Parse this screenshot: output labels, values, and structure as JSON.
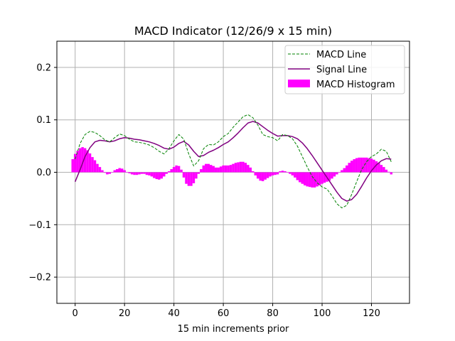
{
  "chart_data": {
    "type": "line",
    "title": "MACD Indicator (12/26/9 x 15 min)",
    "xlabel": "15 min increments prior",
    "ylabel": "",
    "xlim": [
      -7.4,
      135.4
    ],
    "ylim": [
      -0.25,
      0.25
    ],
    "x_ticks": [
      0,
      20,
      40,
      60,
      80,
      100,
      120
    ],
    "x_tick_labels": [
      "0",
      "20",
      "40",
      "60",
      "80",
      "100",
      "120"
    ],
    "y_ticks": [
      -0.2,
      -0.1,
      0.0,
      0.1,
      0.2
    ],
    "y_tick_labels": [
      "−0.2",
      "−0.1",
      "0.0",
      "0.1",
      "0.2"
    ],
    "grid": true,
    "legend_position": "top-right",
    "colors": {
      "macd": "#008000",
      "signal": "#800080",
      "histogram": "#ff00ff"
    },
    "series": [
      {
        "name": "MACD Line",
        "style": "dashed",
        "points": [
          [
            0,
            0.025
          ],
          [
            2,
            0.055
          ],
          [
            4,
            0.072
          ],
          [
            6,
            0.078
          ],
          [
            8,
            0.076
          ],
          [
            10,
            0.07
          ],
          [
            12,
            0.062
          ],
          [
            14,
            0.058
          ],
          [
            16,
            0.066
          ],
          [
            18,
            0.073
          ],
          [
            20,
            0.07
          ],
          [
            22,
            0.063
          ],
          [
            24,
            0.058
          ],
          [
            26,
            0.057
          ],
          [
            28,
            0.055
          ],
          [
            30,
            0.052
          ],
          [
            32,
            0.047
          ],
          [
            34,
            0.04
          ],
          [
            36,
            0.035
          ],
          [
            38,
            0.045
          ],
          [
            40,
            0.06
          ],
          [
            42,
            0.072
          ],
          [
            44,
            0.063
          ],
          [
            46,
            0.035
          ],
          [
            48,
            0.012
          ],
          [
            50,
            0.022
          ],
          [
            52,
            0.045
          ],
          [
            54,
            0.053
          ],
          [
            56,
            0.052
          ],
          [
            58,
            0.058
          ],
          [
            60,
            0.068
          ],
          [
            62,
            0.074
          ],
          [
            64,
            0.086
          ],
          [
            66,
            0.096
          ],
          [
            68,
            0.106
          ],
          [
            70,
            0.11
          ],
          [
            72,
            0.104
          ],
          [
            74,
            0.09
          ],
          [
            76,
            0.072
          ],
          [
            78,
            0.068
          ],
          [
            80,
            0.066
          ],
          [
            82,
            0.06
          ],
          [
            84,
            0.072
          ],
          [
            86,
            0.07
          ],
          [
            88,
            0.064
          ],
          [
            90,
            0.05
          ],
          [
            92,
            0.03
          ],
          [
            94,
            0.01
          ],
          [
            96,
            -0.008
          ],
          [
            98,
            -0.02
          ],
          [
            100,
            -0.028
          ],
          [
            102,
            -0.032
          ],
          [
            104,
            -0.045
          ],
          [
            106,
            -0.06
          ],
          [
            108,
            -0.068
          ],
          [
            110,
            -0.063
          ],
          [
            112,
            -0.042
          ],
          [
            114,
            -0.018
          ],
          [
            116,
            0.005
          ],
          [
            118,
            0.02
          ],
          [
            120,
            0.03
          ],
          [
            122,
            0.035
          ],
          [
            124,
            0.044
          ],
          [
            126,
            0.04
          ],
          [
            128,
            0.02
          ]
        ]
      },
      {
        "name": "Signal Line",
        "style": "solid",
        "points": [
          [
            0,
            -0.018
          ],
          [
            2,
            0.005
          ],
          [
            4,
            0.03
          ],
          [
            6,
            0.047
          ],
          [
            8,
            0.058
          ],
          [
            10,
            0.061
          ],
          [
            12,
            0.06
          ],
          [
            14,
            0.058
          ],
          [
            16,
            0.06
          ],
          [
            18,
            0.064
          ],
          [
            20,
            0.066
          ],
          [
            22,
            0.065
          ],
          [
            24,
            0.063
          ],
          [
            26,
            0.062
          ],
          [
            28,
            0.06
          ],
          [
            30,
            0.058
          ],
          [
            32,
            0.055
          ],
          [
            34,
            0.051
          ],
          [
            36,
            0.046
          ],
          [
            38,
            0.044
          ],
          [
            40,
            0.048
          ],
          [
            42,
            0.055
          ],
          [
            44,
            0.059
          ],
          [
            46,
            0.052
          ],
          [
            48,
            0.04
          ],
          [
            50,
            0.03
          ],
          [
            52,
            0.032
          ],
          [
            54,
            0.038
          ],
          [
            56,
            0.042
          ],
          [
            58,
            0.047
          ],
          [
            60,
            0.053
          ],
          [
            62,
            0.058
          ],
          [
            64,
            0.066
          ],
          [
            66,
            0.075
          ],
          [
            68,
            0.085
          ],
          [
            70,
            0.094
          ],
          [
            72,
            0.097
          ],
          [
            74,
            0.094
          ],
          [
            76,
            0.087
          ],
          [
            78,
            0.08
          ],
          [
            80,
            0.074
          ],
          [
            82,
            0.069
          ],
          [
            84,
            0.07
          ],
          [
            86,
            0.07
          ],
          [
            88,
            0.068
          ],
          [
            90,
            0.064
          ],
          [
            92,
            0.056
          ],
          [
            94,
            0.045
          ],
          [
            96,
            0.032
          ],
          [
            98,
            0.018
          ],
          [
            100,
            0.004
          ],
          [
            102,
            -0.01
          ],
          [
            104,
            -0.024
          ],
          [
            106,
            -0.038
          ],
          [
            108,
            -0.05
          ],
          [
            110,
            -0.055
          ],
          [
            112,
            -0.052
          ],
          [
            114,
            -0.042
          ],
          [
            116,
            -0.027
          ],
          [
            118,
            -0.011
          ],
          [
            120,
            0.003
          ],
          [
            122,
            0.014
          ],
          [
            124,
            0.022
          ],
          [
            126,
            0.026
          ],
          [
            128,
            0.025
          ]
        ]
      }
    ],
    "histogram": {
      "name": "MACD Histogram",
      "x": [
        -1,
        0,
        1,
        2,
        3,
        4,
        5,
        6,
        7,
        8,
        9,
        10,
        11,
        12,
        13,
        14,
        15,
        16,
        17,
        18,
        19,
        20,
        21,
        22,
        23,
        24,
        25,
        26,
        27,
        28,
        29,
        30,
        31,
        32,
        33,
        34,
        35,
        36,
        37,
        38,
        39,
        40,
        41,
        42,
        43,
        44,
        45,
        46,
        47,
        48,
        49,
        50,
        51,
        52,
        53,
        54,
        55,
        56,
        57,
        58,
        59,
        60,
        61,
        62,
        63,
        64,
        65,
        66,
        67,
        68,
        69,
        70,
        71,
        72,
        73,
        74,
        75,
        76,
        77,
        78,
        79,
        80,
        81,
        82,
        83,
        84,
        85,
        86,
        87,
        88,
        89,
        90,
        91,
        92,
        93,
        94,
        95,
        96,
        97,
        98,
        99,
        100,
        101,
        102,
        103,
        104,
        105,
        106,
        107,
        108,
        109,
        110,
        111,
        112,
        113,
        114,
        115,
        116,
        117,
        118,
        119,
        120,
        121,
        122,
        123,
        124,
        125,
        126,
        127,
        128
      ],
      "values": [
        0.025,
        0.035,
        0.041,
        0.046,
        0.048,
        0.046,
        0.042,
        0.036,
        0.029,
        0.023,
        0.016,
        0.01,
        0.004,
        -0.001,
        -0.004,
        -0.003,
        0.0,
        0.004,
        0.006,
        0.008,
        0.007,
        0.004,
        0.0,
        -0.002,
        -0.004,
        -0.005,
        -0.005,
        -0.004,
        -0.003,
        -0.003,
        -0.005,
        -0.006,
        -0.008,
        -0.011,
        -0.013,
        -0.014,
        -0.012,
        -0.008,
        -0.003,
        0.002,
        0.006,
        0.01,
        0.013,
        0.012,
        0.005,
        -0.01,
        -0.022,
        -0.026,
        -0.026,
        -0.021,
        -0.012,
        -0.003,
        0.006,
        0.013,
        0.016,
        0.016,
        0.014,
        0.012,
        0.009,
        0.009,
        0.011,
        0.013,
        0.013,
        0.013,
        0.014,
        0.016,
        0.018,
        0.019,
        0.02,
        0.02,
        0.018,
        0.014,
        0.009,
        0.002,
        -0.006,
        -0.012,
        -0.016,
        -0.017,
        -0.014,
        -0.011,
        -0.008,
        -0.006,
        -0.005,
        -0.004,
        0.002,
        0.003,
        0.002,
        0.0,
        -0.003,
        -0.006,
        -0.01,
        -0.015,
        -0.019,
        -0.022,
        -0.025,
        -0.027,
        -0.028,
        -0.029,
        -0.029,
        -0.027,
        -0.025,
        -0.022,
        -0.02,
        -0.018,
        -0.016,
        -0.012,
        -0.008,
        -0.004,
        0.0,
        0.004,
        0.008,
        0.013,
        0.018,
        0.022,
        0.025,
        0.027,
        0.028,
        0.028,
        0.028,
        0.028,
        0.027,
        0.026,
        0.024,
        0.021,
        0.018,
        0.014,
        0.01,
        0.005,
        0.001,
        -0.004
      ]
    }
  }
}
